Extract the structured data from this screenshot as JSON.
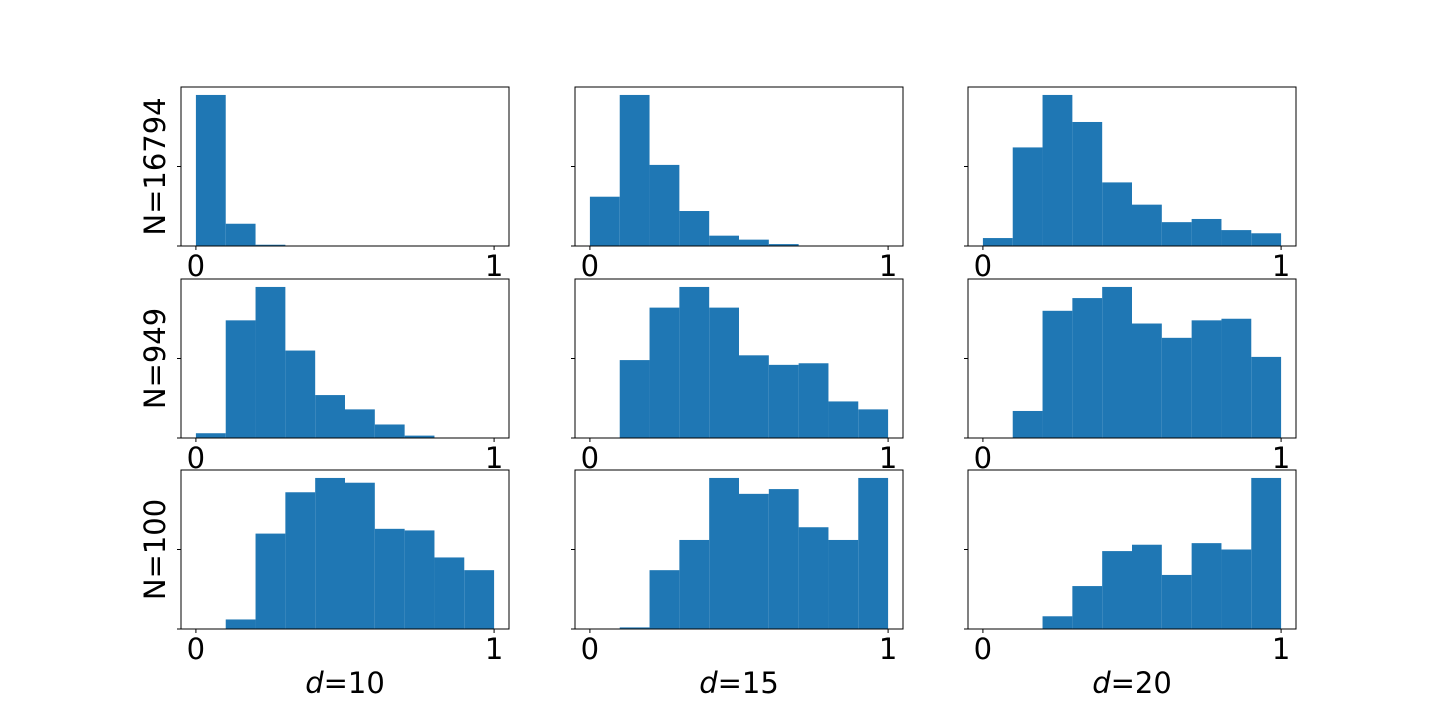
{
  "figure": {
    "bar_color": "#1f77b4",
    "row_labels": [
      "N=16794",
      "N=949",
      "N=100"
    ],
    "col_labels": [
      {
        "var": "d",
        "eq": "=10"
      },
      {
        "var": "d",
        "eq": "=15"
      },
      {
        "var": "d",
        "eq": "=20"
      }
    ],
    "x_tick_labels": [
      "0",
      "1"
    ]
  },
  "chart_data": [
    {
      "type": "bar",
      "row": 0,
      "col": 0,
      "row_label": "N=16794",
      "col_label": "d=10",
      "xlim": [
        -0.05,
        1.05
      ],
      "ylim": [
        0,
        1
      ],
      "bin_edges": [
        0,
        0.1,
        0.2,
        0.3,
        0.4,
        0.5,
        0.6,
        0.7,
        0.8,
        0.9,
        1.0
      ],
      "values": [
        0.95,
        0.14,
        0.008,
        0,
        0,
        0,
        0,
        0,
        0,
        0
      ],
      "grid": false
    },
    {
      "type": "bar",
      "row": 0,
      "col": 1,
      "row_label": "N=16794",
      "col_label": "d=15",
      "xlim": [
        -0.05,
        1.05
      ],
      "ylim": [
        0,
        1
      ],
      "bin_edges": [
        0,
        0.1,
        0.2,
        0.3,
        0.4,
        0.5,
        0.6,
        0.7,
        0.8,
        0.9,
        1.0
      ],
      "values": [
        0.31,
        0.95,
        0.51,
        0.22,
        0.065,
        0.04,
        0.012,
        0,
        0,
        0
      ],
      "grid": false
    },
    {
      "type": "bar",
      "row": 0,
      "col": 2,
      "row_label": "N=16794",
      "col_label": "d=20",
      "xlim": [
        -0.05,
        1.05
      ],
      "ylim": [
        0,
        1
      ],
      "bin_edges": [
        0,
        0.1,
        0.2,
        0.3,
        0.4,
        0.5,
        0.6,
        0.7,
        0.8,
        0.9,
        1.0
      ],
      "values": [
        0.05,
        0.62,
        0.95,
        0.78,
        0.4,
        0.26,
        0.15,
        0.17,
        0.1,
        0.08
      ],
      "grid": false
    },
    {
      "type": "bar",
      "row": 1,
      "col": 0,
      "row_label": "N=949",
      "col_label": "d=10",
      "xlim": [
        -0.05,
        1.05
      ],
      "ylim": [
        0,
        1
      ],
      "bin_edges": [
        0,
        0.1,
        0.2,
        0.3,
        0.4,
        0.5,
        0.6,
        0.7,
        0.8,
        0.9,
        1.0
      ],
      "values": [
        0.03,
        0.74,
        0.95,
        0.55,
        0.27,
        0.18,
        0.085,
        0.015,
        0,
        0
      ],
      "grid": false
    },
    {
      "type": "bar",
      "row": 1,
      "col": 1,
      "row_label": "N=949",
      "col_label": "d=15",
      "xlim": [
        -0.05,
        1.05
      ],
      "ylim": [
        0,
        1
      ],
      "bin_edges": [
        0,
        0.1,
        0.2,
        0.3,
        0.4,
        0.5,
        0.6,
        0.7,
        0.8,
        0.9,
        1.0
      ],
      "values": [
        0,
        0.49,
        0.82,
        0.95,
        0.82,
        0.52,
        0.46,
        0.47,
        0.23,
        0.18
      ],
      "grid": false
    },
    {
      "type": "bar",
      "row": 1,
      "col": 2,
      "row_label": "N=949",
      "col_label": "d=20",
      "xlim": [
        -0.05,
        1.05
      ],
      "ylim": [
        0,
        1
      ],
      "bin_edges": [
        0,
        0.1,
        0.2,
        0.3,
        0.4,
        0.5,
        0.6,
        0.7,
        0.8,
        0.9,
        1.0
      ],
      "values": [
        0,
        0.17,
        0.8,
        0.88,
        0.95,
        0.72,
        0.63,
        0.74,
        0.75,
        0.51
      ],
      "grid": false
    },
    {
      "type": "bar",
      "row": 2,
      "col": 0,
      "row_label": "N=100",
      "col_label": "d=10",
      "xlim": [
        -0.05,
        1.05
      ],
      "ylim": [
        0,
        1
      ],
      "bin_edges": [
        0,
        0.1,
        0.2,
        0.3,
        0.4,
        0.5,
        0.6,
        0.7,
        0.8,
        0.9,
        1.0
      ],
      "values": [
        0,
        0.06,
        0.6,
        0.86,
        0.95,
        0.92,
        0.63,
        0.62,
        0.45,
        0.37
      ],
      "grid": false
    },
    {
      "type": "bar",
      "row": 2,
      "col": 1,
      "row_label": "N=100",
      "col_label": "d=15",
      "xlim": [
        -0.05,
        1.05
      ],
      "ylim": [
        0,
        1
      ],
      "bin_edges": [
        0,
        0.1,
        0.2,
        0.3,
        0.4,
        0.5,
        0.6,
        0.7,
        0.8,
        0.9,
        1.0
      ],
      "values": [
        0,
        0.01,
        0.37,
        0.56,
        0.95,
        0.85,
        0.88,
        0.64,
        0.56,
        0.95
      ],
      "grid": false
    },
    {
      "type": "bar",
      "row": 2,
      "col": 2,
      "row_label": "N=100",
      "col_label": "d=20",
      "xlim": [
        -0.05,
        1.05
      ],
      "ylim": [
        0,
        1
      ],
      "bin_edges": [
        0,
        0.1,
        0.2,
        0.3,
        0.4,
        0.5,
        0.6,
        0.7,
        0.8,
        0.9,
        1.0
      ],
      "values": [
        0,
        0,
        0.08,
        0.27,
        0.49,
        0.53,
        0.34,
        0.54,
        0.5,
        0.95
      ],
      "grid": false
    }
  ]
}
